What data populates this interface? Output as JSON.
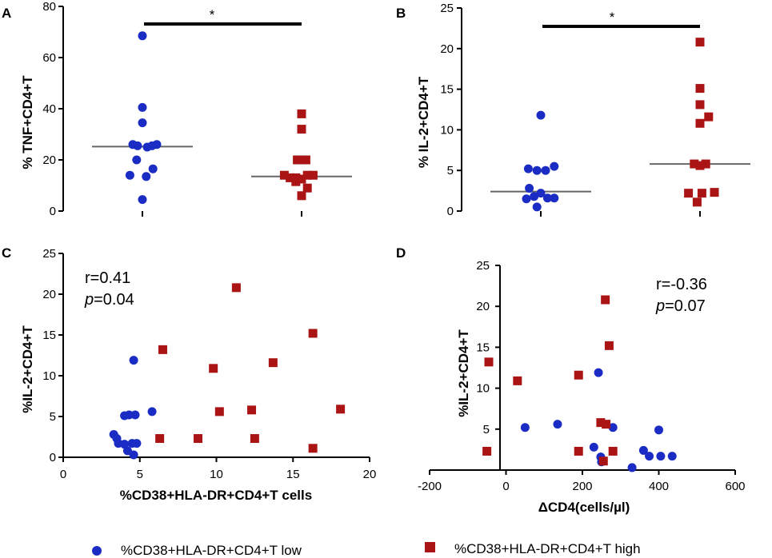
{
  "colors": {
    "low": "#1a2cc4",
    "high": "#aa1414",
    "median": "#666666",
    "axis": "#000000"
  },
  "legend": {
    "low_label": "%CD38+HLA-DR+CD4+T low",
    "high_label": "%CD38+HLA-DR+CD4+T high"
  },
  "chart_data": [
    {
      "id": "A",
      "type": "scatter",
      "subtype": "dot-plot",
      "panel_label": "A",
      "ylabel": "% TNF+CD4+T",
      "xlabel": "",
      "ylim": [
        0,
        80
      ],
      "yticks": [
        "0",
        "20",
        "40",
        "60",
        "80"
      ],
      "groups": [
        {
          "name": "low",
          "median": 25.2,
          "values": [
            68.5,
            40.5,
            34.5,
            26.0,
            25.5,
            25.5,
            25.0,
            26.0,
            20.0,
            16.5,
            14.0,
            13.5,
            4.5
          ],
          "offsets": [
            0,
            0,
            0,
            -1,
            1,
            -0.5,
            0.5,
            1.5,
            -0.6,
            1.1,
            -1.3,
            0.4,
            0
          ]
        },
        {
          "name": "high",
          "median": 13.5,
          "values": [
            38.0,
            32.0,
            20.0,
            20.0,
            14.0,
            13.0,
            13.0,
            12.5,
            14.0,
            14.0,
            11.5,
            9.0,
            6.0
          ],
          "offsets": [
            0,
            0,
            -0.45,
            0.45,
            -1.8,
            -1.2,
            -0.6,
            0,
            0.6,
            1.2,
            -0.6,
            0.6,
            0
          ]
        }
      ],
      "significance": "*"
    },
    {
      "id": "B",
      "type": "scatter",
      "subtype": "dot-plot",
      "panel_label": "B",
      "ylabel": "% IL-2+CD4+T",
      "xlabel": "",
      "ylim": [
        0,
        25
      ],
      "yticks": [
        "0",
        "5",
        "10",
        "15",
        "20",
        "25"
      ],
      "groups": [
        {
          "name": "low",
          "median": 2.4,
          "values": [
            11.8,
            5.5,
            5.2,
            5.0,
            5.0,
            2.8,
            2.2,
            1.8,
            1.6,
            1.6,
            1.5,
            0.5
          ],
          "offsets": [
            0,
            1.4,
            -1.3,
            -0.4,
            0.5,
            -1.2,
            0,
            -0.7,
            0.7,
            1.4,
            -1.5,
            -0.4
          ]
        },
        {
          "name": "high",
          "median": 5.8,
          "values": [
            20.8,
            15.1,
            13.1,
            11.6,
            10.8,
            5.8,
            5.6,
            5.8,
            2.2,
            2.2,
            2.3,
            1.1
          ],
          "offsets": [
            0,
            0,
            0,
            0.9,
            0,
            -0.6,
            0,
            0.6,
            -1.2,
            0.2,
            1.5,
            -0.3
          ]
        }
      ],
      "significance": "*"
    },
    {
      "id": "C",
      "type": "scatter",
      "panel_label": "C",
      "xlabel": "%CD38+HLA-DR+CD4+T cells",
      "ylabel": "%IL-2+CD4+T",
      "xlim": [
        0,
        20
      ],
      "ylim": [
        0,
        25
      ],
      "xticks": [
        "0",
        "5",
        "10",
        "15",
        "20"
      ],
      "yticks": [
        "0",
        "5",
        "10",
        "15",
        "20",
        "25"
      ],
      "annotation": {
        "r": "r=0.41",
        "p_letter": "p",
        "p_value": "=0.04"
      },
      "series": [
        {
          "name": "low",
          "points": [
            [
              4.6,
              11.9
            ],
            [
              4.3,
              5.2
            ],
            [
              4.7,
              5.2
            ],
            [
              5.8,
              5.6
            ],
            [
              4.0,
              5.1
            ],
            [
              3.3,
              2.8
            ],
            [
              3.5,
              2.3
            ],
            [
              3.6,
              1.7
            ],
            [
              4.0,
              1.6
            ],
            [
              4.5,
              1.7
            ],
            [
              4.8,
              1.7
            ],
            [
              4.2,
              0.8
            ],
            [
              4.6,
              0.3
            ]
          ]
        },
        {
          "name": "high",
          "points": [
            [
              11.3,
              20.8
            ],
            [
              16.3,
              15.2
            ],
            [
              6.5,
              13.2
            ],
            [
              13.7,
              11.6
            ],
            [
              9.8,
              10.9
            ],
            [
              18.1,
              5.9
            ],
            [
              10.2,
              5.6
            ],
            [
              12.3,
              5.8
            ],
            [
              6.3,
              2.3
            ],
            [
              8.8,
              2.3
            ],
            [
              12.5,
              2.3
            ],
            [
              16.3,
              1.1
            ]
          ]
        }
      ]
    },
    {
      "id": "D",
      "type": "scatter",
      "panel_label": "D",
      "xlabel": "ΔCD4(cells/µl)",
      "ylabel": "%IL-2+CD4+T",
      "xlim": [
        -200,
        600
      ],
      "ylim": [
        0,
        25
      ],
      "xticks": [
        "-200",
        "0",
        "200",
        "400",
        "600"
      ],
      "yticks": [
        "5",
        "10",
        "15",
        "20",
        "25"
      ],
      "annotation": {
        "r": "r=-0.36",
        "p_letter": "p",
        "p_value": "=0.07"
      },
      "series": [
        {
          "name": "low",
          "points": [
            [
              242,
              11.9
            ],
            [
              400,
              4.9
            ],
            [
              50,
              5.2
            ],
            [
              135,
              5.6
            ],
            [
              280,
              5.2
            ],
            [
              230,
              2.8
            ],
            [
              360,
              2.4
            ],
            [
              375,
              1.7
            ],
            [
              405,
              1.7
            ],
            [
              435,
              1.7
            ],
            [
              248,
              1.6
            ],
            [
              250,
              1.0
            ],
            [
              330,
              0.3
            ]
          ]
        },
        {
          "name": "high",
          "points": [
            [
              260,
              20.8
            ],
            [
              270,
              15.2
            ],
            [
              -45,
              13.2
            ],
            [
              190,
              11.6
            ],
            [
              30,
              10.9
            ],
            [
              248,
              5.8
            ],
            [
              262,
              5.6
            ],
            [
              -50,
              2.3
            ],
            [
              190,
              2.3
            ],
            [
              280,
              2.3
            ],
            [
              255,
              1.1
            ]
          ]
        }
      ]
    }
  ]
}
